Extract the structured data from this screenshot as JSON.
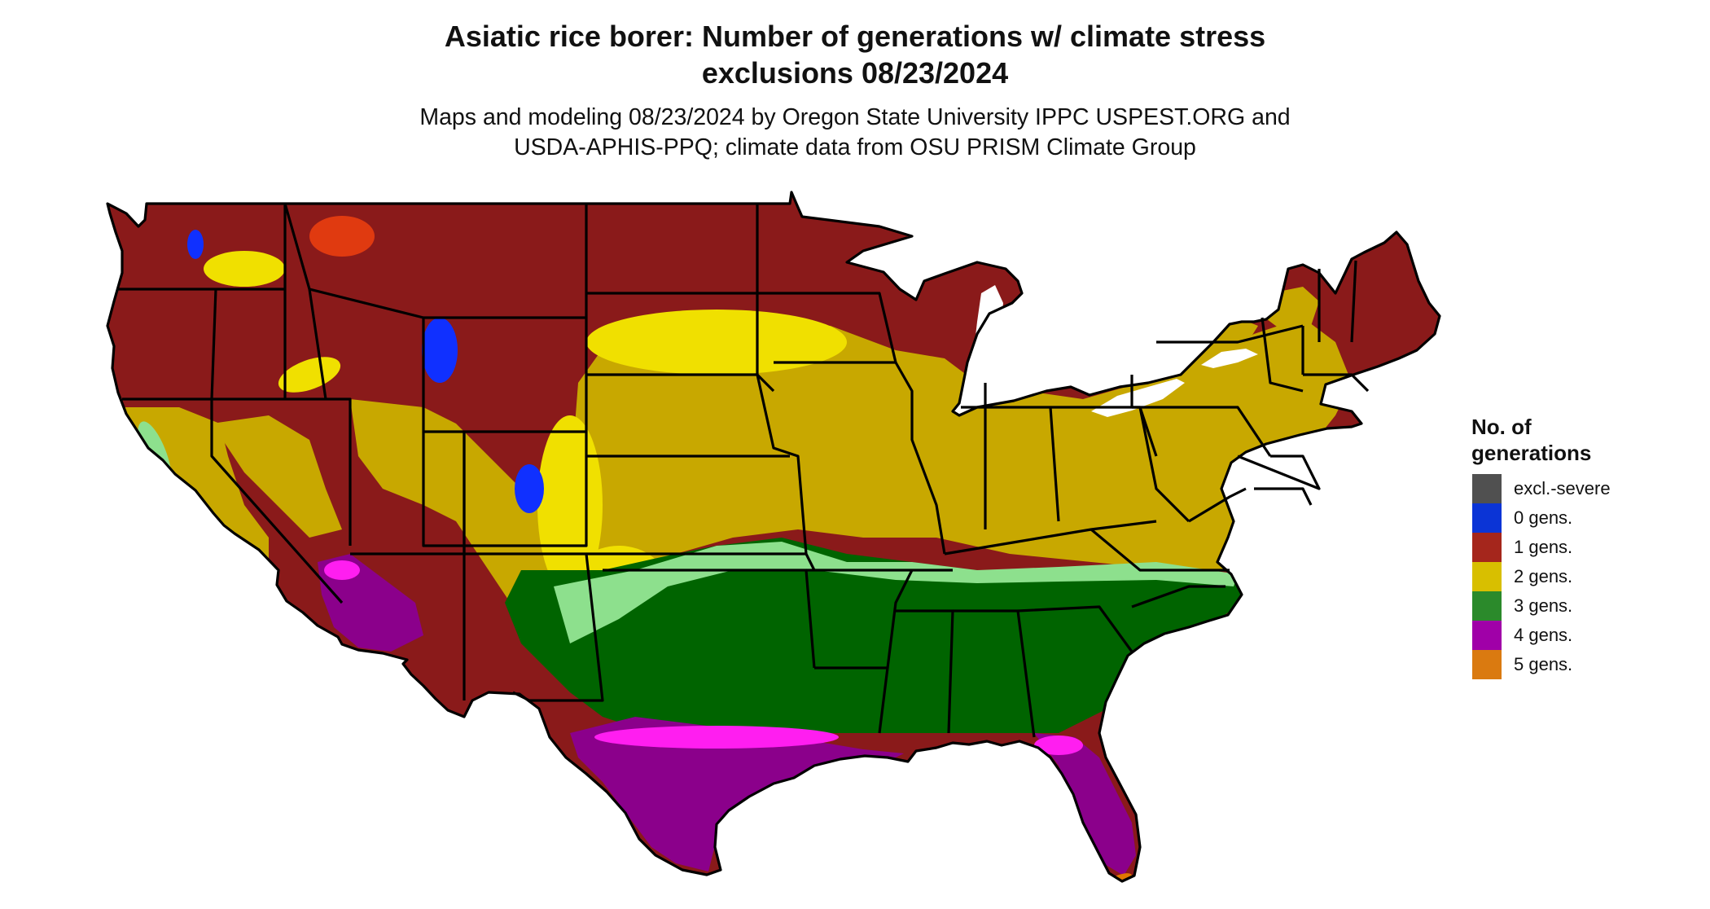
{
  "title": {
    "line1": "Asiatic rice borer: Number of generations w/ climate stress",
    "line2": "exclusions 08/23/2024"
  },
  "subtitle": {
    "line1": "Maps and modeling 08/23/2024 by Oregon State University IPPC USPEST.ORG and",
    "line2": "USDA-APHIS-PPQ; climate data from OSU PRISM Climate Group"
  },
  "legend": {
    "title_line1": "No. of",
    "title_line2": "generations",
    "items": [
      {
        "label": "excl.-severe",
        "color": "#505050"
      },
      {
        "label": "0 gens.",
        "color": "#0b34d6"
      },
      {
        "label": "1 gens.",
        "color": "#a5261c"
      },
      {
        "label": "2 gens.",
        "color": "#d8bf00"
      },
      {
        "label": "3 gens.",
        "color": "#2b8a2b"
      },
      {
        "label": "4 gens.",
        "color": "#a000a8"
      },
      {
        "label": "5 gens.",
        "color": "#da7a10"
      }
    ]
  },
  "map_colors": {
    "one_gen": "#8a1a1a",
    "one_gen_warm": "#e03a10",
    "two_gen": "#c8a800",
    "two_gen_light": "#f0e000",
    "three_gen": "#006400",
    "three_gen_light": "#8de08d",
    "four_gen": "#8b008b",
    "four_gen_light": "#ff1ef0",
    "zero_gen": "#1030ff",
    "five_gen": "#e07800",
    "boundary": "#000000"
  }
}
